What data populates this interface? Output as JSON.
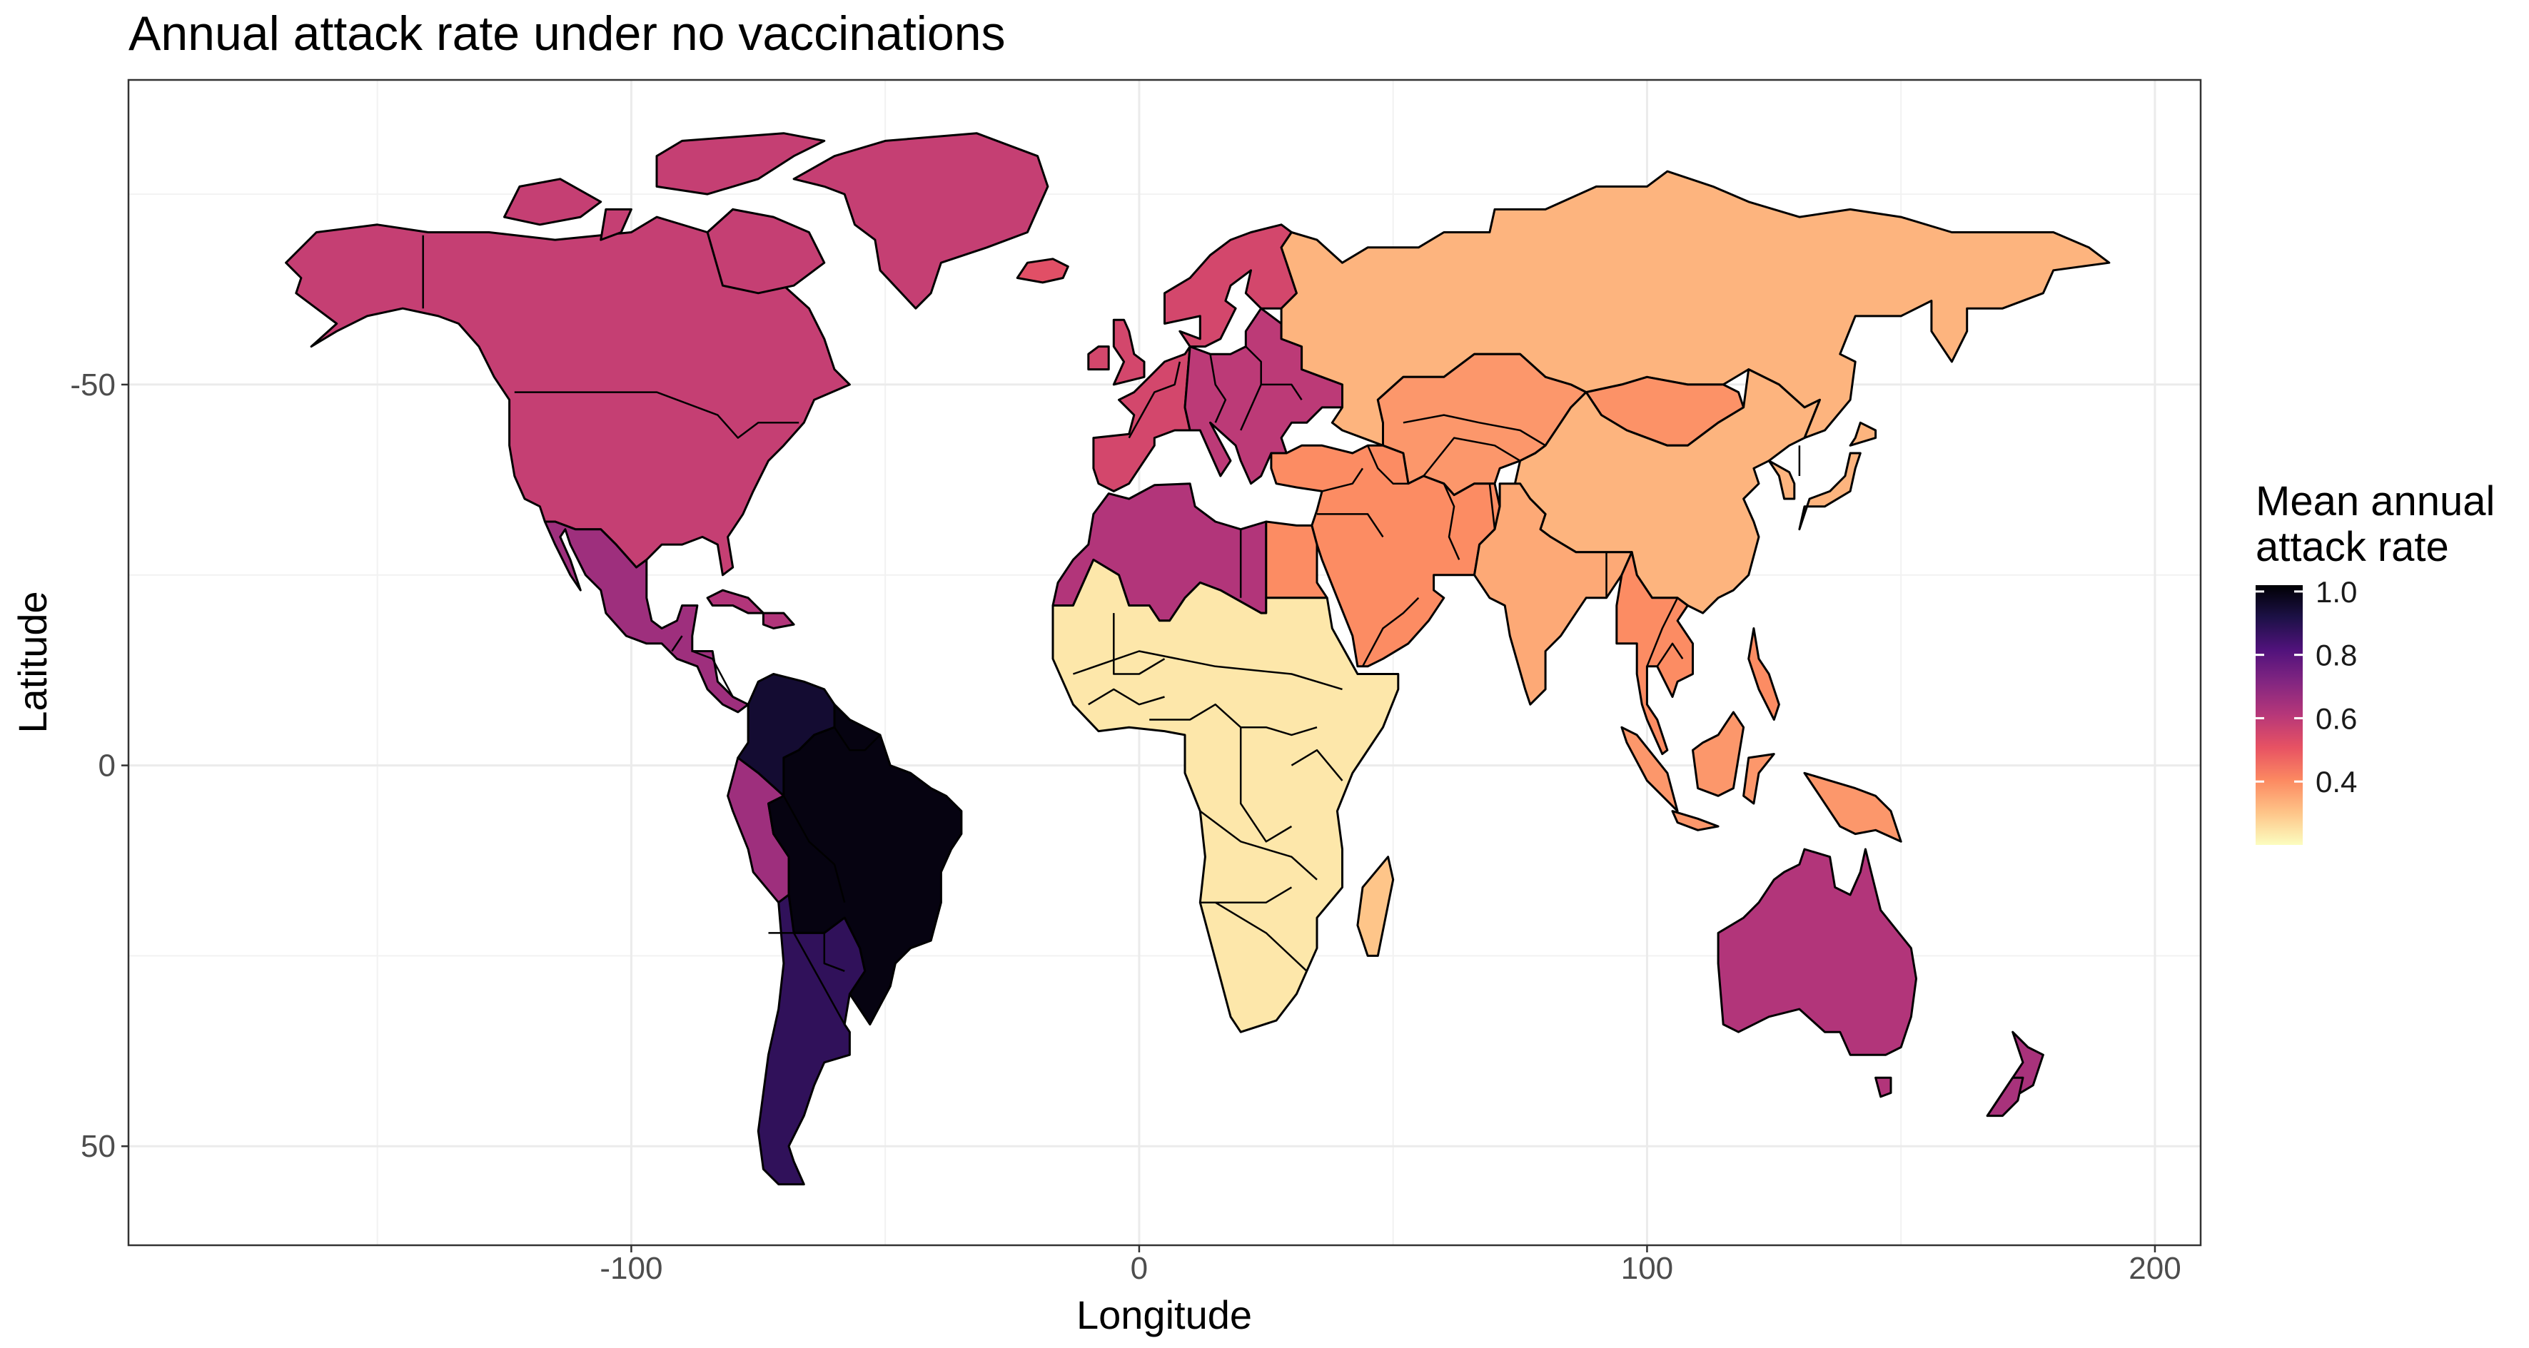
{
  "title": "Annual attack rate under no vaccinations",
  "x_axis": {
    "label": "Longitude",
    "ticks": [
      "-100",
      "0",
      "100",
      "200"
    ]
  },
  "y_axis": {
    "label": "Latitude",
    "ticks": [
      "50",
      "0",
      "-50"
    ]
  },
  "legend": {
    "title_line1": "Mean annual",
    "title_line2": "attack rate",
    "ticks": [
      "1.0",
      "0.8",
      "0.6",
      "0.4"
    ],
    "palette": [
      "#fcfdbf",
      "#fec488",
      "#fc8961",
      "#e75263",
      "#b73779",
      "#832681",
      "#51127c",
      "#1d1147",
      "#000004"
    ]
  },
  "chart_data": {
    "type": "choropleth",
    "title": "Annual attack rate under no vaccinations",
    "xlabel": "Longitude",
    "ylabel": "Latitude",
    "xlim": [
      -199,
      209
    ],
    "ylim": [
      -63,
      90
    ],
    "legend_placement": "right",
    "colorscale": "magma (reversed)",
    "value_range": [
      0.2,
      1.02
    ],
    "regions": [
      {
        "name": "North America",
        "value": 0.58
      },
      {
        "name": "Mexico & Central America",
        "value": 0.66
      },
      {
        "name": "Caribbean",
        "value": 0.62
      },
      {
        "name": "Colombia & Venezuela",
        "value": 0.95
      },
      {
        "name": "Ecuador & Peru",
        "value": 0.66
      },
      {
        "name": "Brazil & Bolivia",
        "value": 1.0
      },
      {
        "name": "Argentina & Chile",
        "value": 0.88
      },
      {
        "name": "Greenland",
        "value": 0.58
      },
      {
        "name": "Iceland",
        "value": 0.52
      },
      {
        "name": "Western & Northern Europe",
        "value": 0.55
      },
      {
        "name": "Central & Eastern Europe",
        "value": 0.6
      },
      {
        "name": "Russia",
        "value": 0.33
      },
      {
        "name": "Central Asia",
        "value": 0.38
      },
      {
        "name": "Mongolia",
        "value": 0.39
      },
      {
        "name": "China",
        "value": 0.33
      },
      {
        "name": "Middle East",
        "value": 0.4
      },
      {
        "name": "South Asia",
        "value": 0.35
      },
      {
        "name": "Southeast Asia",
        "value": 0.4
      },
      {
        "name": "Japan & Korea",
        "value": 0.33
      },
      {
        "name": "North Africa (west)",
        "value": 0.62
      },
      {
        "name": "Egypt",
        "value": 0.4
      },
      {
        "name": "Sub-Saharan Africa",
        "value": 0.24
      },
      {
        "name": "Madagascar",
        "value": 0.3
      },
      {
        "name": "Indonesia & New Guinea",
        "value": 0.38
      },
      {
        "name": "Australia",
        "value": 0.62
      },
      {
        "name": "New Zealand",
        "value": 0.64
      }
    ]
  }
}
